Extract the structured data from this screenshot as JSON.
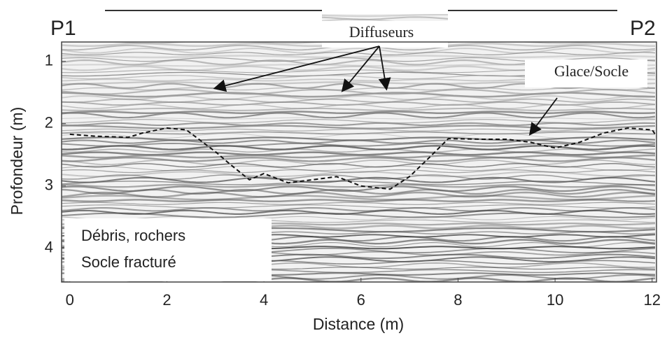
{
  "chart_data": {
    "type": "radargram",
    "xlabel": "Distance (m)",
    "ylabel": "Profondeur (m)",
    "xlim": [
      -0.17,
      12.09
    ],
    "ylim": [
      0.69,
      4.54
    ],
    "y_inverted": true,
    "xticks": [
      0,
      2,
      4,
      6,
      8,
      10,
      12
    ],
    "yticks": [
      1,
      2,
      3,
      4
    ],
    "profile_labels": [
      "P1",
      "P2"
    ],
    "annotations": [
      "Diffuseurs",
      "Glace/Socle"
    ],
    "box_text": [
      "Débris, rochers",
      "Socle fracturé"
    ],
    "interface": {
      "color": "#111111",
      "x": [
        0,
        0.5,
        1.2,
        1.5,
        2.0,
        2.4,
        3.0,
        3.3,
        3.7,
        4.0,
        4.5,
        5.0,
        5.5,
        6.0,
        6.6,
        7.0,
        7.4,
        7.8,
        8.5,
        9.0,
        9.5,
        10.0,
        10.5,
        11.0,
        11.5,
        12.0,
        12.09
      ],
      "y": [
        2.17,
        2.2,
        2.22,
        2.15,
        2.07,
        2.1,
        2.45,
        2.65,
        2.9,
        2.8,
        2.95,
        2.9,
        2.85,
        3.0,
        3.05,
        2.85,
        2.55,
        2.24,
        2.25,
        2.25,
        2.3,
        2.39,
        2.3,
        2.15,
        2.07,
        2.1,
        2.2
      ]
    }
  }
}
